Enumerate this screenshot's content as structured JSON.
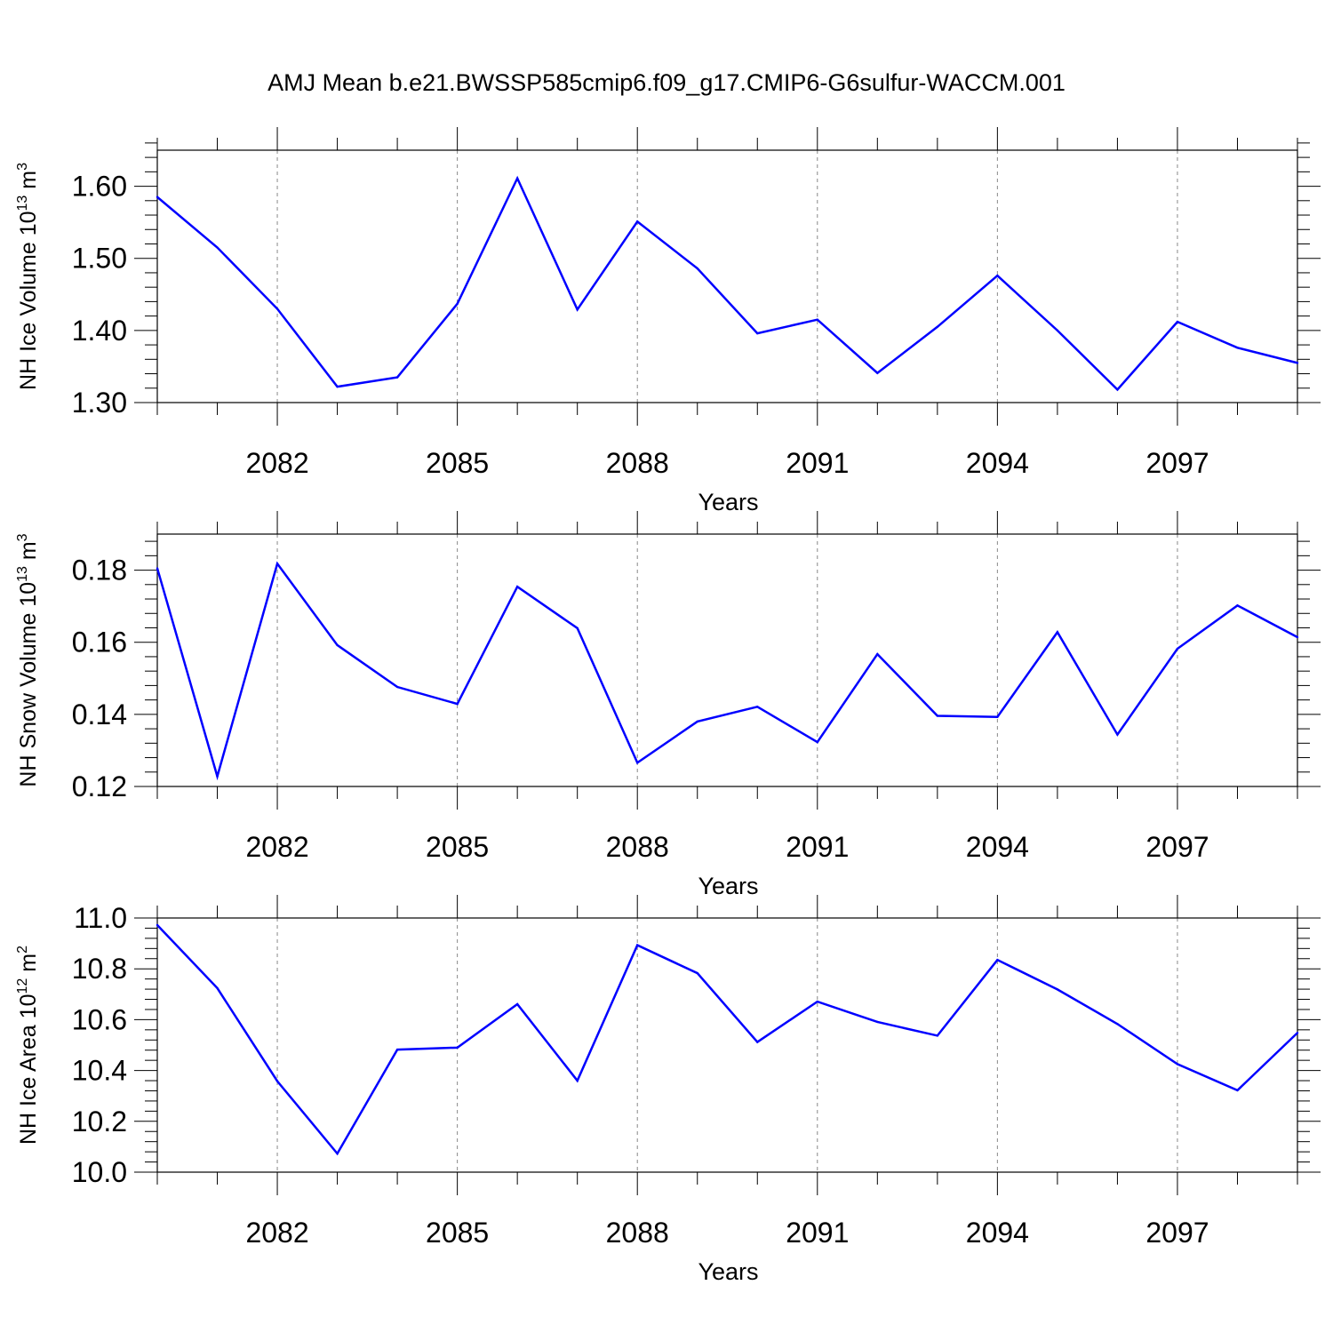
{
  "title": "AMJ Mean b.e21.BWSSP585cmip6.f09_g17.CMIP6-G6sulfur-WACCM.001",
  "line_color": "#0000ff",
  "chart_data": [
    {
      "type": "line",
      "ylabel": {
        "text": "NH Ice Volume 10",
        "sup": "13",
        "unit": " m",
        "unit_sup": "3"
      },
      "xlabel": "Years",
      "xlim": [
        2080,
        2099
      ],
      "ylim": [
        1.3,
        1.65
      ],
      "yticks": [
        1.3,
        1.4,
        1.5,
        1.6
      ],
      "ytick_labels": [
        "1.30",
        "1.40",
        "1.50",
        "1.60"
      ],
      "xticks": [
        2082,
        2085,
        2088,
        2091,
        2094,
        2097
      ],
      "xtick_labels": [
        "2082",
        "2085",
        "2088",
        "2091",
        "2094",
        "2097"
      ],
      "x": [
        2080,
        2081,
        2082,
        2083,
        2084,
        2085,
        2086,
        2087,
        2088,
        2089,
        2090,
        2091,
        2092,
        2093,
        2094,
        2095,
        2096,
        2097,
        2098,
        2099
      ],
      "values": [
        1.585,
        1.515,
        1.43,
        1.322,
        1.335,
        1.437,
        1.611,
        1.429,
        1.551,
        1.486,
        1.396,
        1.415,
        1.341,
        1.405,
        1.476,
        1.4,
        1.318,
        1.412,
        1.376,
        1.355
      ]
    },
    {
      "type": "line",
      "ylabel": {
        "text": "NH Snow Volume 10",
        "sup": "13",
        "unit": " m",
        "unit_sup": "3"
      },
      "xlabel": "Years",
      "xlim": [
        2080,
        2099
      ],
      "ylim": [
        0.12,
        0.19
      ],
      "yticks": [
        0.12,
        0.14,
        0.16,
        0.18
      ],
      "ytick_labels": [
        "0.12",
        "0.14",
        "0.16",
        "0.18"
      ],
      "xticks": [
        2082,
        2085,
        2088,
        2091,
        2094,
        2097
      ],
      "xtick_labels": [
        "2082",
        "2085",
        "2088",
        "2091",
        "2094",
        "2097"
      ],
      "x": [
        2080,
        2081,
        2082,
        2083,
        2084,
        2085,
        2086,
        2087,
        2088,
        2089,
        2090,
        2091,
        2092,
        2093,
        2094,
        2095,
        2096,
        2097,
        2098,
        2099
      ],
      "values": [
        0.1805,
        0.1228,
        0.1818,
        0.1592,
        0.1476,
        0.1429,
        0.1754,
        0.1639,
        0.1266,
        0.138,
        0.1421,
        0.1323,
        0.1567,
        0.1396,
        0.1393,
        0.1628,
        0.1344,
        0.1582,
        0.1702,
        0.1614
      ]
    },
    {
      "type": "line",
      "ylabel": {
        "text": "NH Ice Area 10",
        "sup": "12",
        "unit": " m",
        "unit_sup": "2"
      },
      "xlabel": "Years",
      "xlim": [
        2080,
        2099
      ],
      "ylim": [
        10.0,
        11.0
      ],
      "yticks": [
        10.0,
        10.2,
        10.4,
        10.6,
        10.8,
        11.0
      ],
      "ytick_labels": [
        "10.0",
        "10.2",
        "10.4",
        "10.6",
        "10.8",
        "11.0"
      ],
      "xticks": [
        2082,
        2085,
        2088,
        2091,
        2094,
        2097
      ],
      "xtick_labels": [
        "2082",
        "2085",
        "2088",
        "2091",
        "2094",
        "2097"
      ],
      "x": [
        2080,
        2081,
        2082,
        2083,
        2084,
        2085,
        2086,
        2087,
        2088,
        2089,
        2090,
        2091,
        2092,
        2093,
        2094,
        2095,
        2096,
        2097,
        2098,
        2099
      ],
      "values": [
        10.972,
        10.724,
        10.358,
        10.073,
        10.482,
        10.49,
        10.661,
        10.36,
        10.893,
        10.783,
        10.512,
        10.671,
        10.591,
        10.537,
        10.835,
        10.719,
        10.583,
        10.425,
        10.322,
        10.548
      ]
    }
  ]
}
